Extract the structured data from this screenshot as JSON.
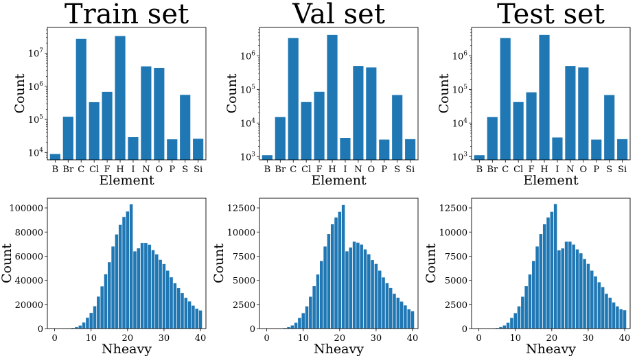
{
  "colors": {
    "bar": "#1f77b4"
  },
  "chart_data": [
    {
      "type": "bar",
      "title": "Train set",
      "xlabel": "Element",
      "ylabel": "Count",
      "yscale": "log",
      "ylim": [
        6000,
        60000000
      ],
      "yticks": [
        10000,
        100000,
        1000000,
        10000000
      ],
      "ytick_labels": [
        {
          "base": "10",
          "exp": "4"
        },
        {
          "base": "10",
          "exp": "5"
        },
        {
          "base": "10",
          "exp": "6"
        },
        {
          "base": "10",
          "exp": "7"
        }
      ],
      "categories": [
        "B",
        "Br",
        "C",
        "Cl",
        "F",
        "H",
        "I",
        "N",
        "O",
        "P",
        "S",
        "Si"
      ],
      "values": [
        9000,
        120000,
        27000000,
        330000,
        680000,
        33000000,
        29000,
        4000000,
        3600000,
        25000,
        550000,
        26000
      ]
    },
    {
      "type": "bar",
      "title": "Val set",
      "xlabel": "Element",
      "ylabel": "Count",
      "yscale": "log",
      "ylim": [
        800,
        7000000
      ],
      "yticks": [
        1000,
        10000,
        100000,
        1000000
      ],
      "ytick_labels": [
        {
          "base": "10",
          "exp": "3"
        },
        {
          "base": "10",
          "exp": "4"
        },
        {
          "base": "10",
          "exp": "5"
        },
        {
          "base": "10",
          "exp": "6"
        }
      ],
      "categories": [
        "B",
        "Br",
        "C",
        "Cl",
        "F",
        "H",
        "I",
        "N",
        "O",
        "P",
        "S",
        "Si"
      ],
      "values": [
        1100,
        15000,
        3400000,
        42000,
        85000,
        4200000,
        3600,
        500000,
        450000,
        3200,
        68000,
        3300
      ]
    },
    {
      "type": "bar",
      "title": "Test set",
      "xlabel": "Element",
      "ylabel": "Count",
      "yscale": "log",
      "ylim": [
        800,
        7000000
      ],
      "yticks": [
        1000,
        10000,
        100000,
        1000000
      ],
      "ytick_labels": [
        {
          "base": "10",
          "exp": "3"
        },
        {
          "base": "10",
          "exp": "4"
        },
        {
          "base": "10",
          "exp": "5"
        },
        {
          "base": "10",
          "exp": "6"
        }
      ],
      "categories": [
        "B",
        "Br",
        "C",
        "Cl",
        "F",
        "H",
        "I",
        "N",
        "O",
        "P",
        "S",
        "Si"
      ],
      "values": [
        1100,
        15000,
        3400000,
        42000,
        82000,
        4200000,
        3700,
        500000,
        450000,
        3200,
        68000,
        3300
      ]
    },
    {
      "type": "bar",
      "xlabel": "Nheavy",
      "ylabel": "Count",
      "xlim": [
        -2,
        41.5
      ],
      "ylim": [
        0,
        108000
      ],
      "xticks": [
        0,
        10,
        20,
        30,
        40
      ],
      "yticks": [
        0,
        20000,
        40000,
        60000,
        80000,
        100000
      ],
      "x": [
        1,
        2,
        3,
        4,
        5,
        6,
        7,
        8,
        9,
        10,
        11,
        12,
        13,
        14,
        15,
        16,
        17,
        18,
        19,
        20,
        21,
        22,
        23,
        24,
        25,
        26,
        27,
        28,
        29,
        30,
        31,
        32,
        33,
        34,
        35,
        36,
        37,
        38,
        39,
        40
      ],
      "values": [
        0,
        0,
        100,
        200,
        500,
        1200,
        2500,
        5000,
        9000,
        13000,
        18500,
        26500,
        35000,
        45000,
        55000,
        68000,
        78000,
        86000,
        92500,
        97000,
        103000,
        64000,
        66500,
        71000,
        71000,
        69500,
        65000,
        61500,
        57000,
        53500,
        48000,
        42500,
        37500,
        33500,
        29500,
        25500,
        22500,
        19000,
        16500,
        15000
      ]
    },
    {
      "type": "bar",
      "xlabel": "Nheavy",
      "ylabel": "Count",
      "xlim": [
        -2,
        41.5
      ],
      "ylim": [
        0,
        13500
      ],
      "xticks": [
        0,
        10,
        20,
        30,
        40
      ],
      "yticks": [
        0,
        2500,
        5000,
        7500,
        10000,
        12500
      ],
      "x": [
        1,
        2,
        3,
        4,
        5,
        6,
        7,
        8,
        9,
        10,
        11,
        12,
        13,
        14,
        15,
        16,
        17,
        18,
        19,
        20,
        21,
        22,
        23,
        24,
        25,
        26,
        27,
        28,
        29,
        30,
        31,
        32,
        33,
        34,
        35,
        36,
        37,
        38,
        39,
        40
      ],
      "values": [
        0,
        0,
        0,
        20,
        60,
        150,
        320,
        600,
        1100,
        1600,
        2300,
        3300,
        4400,
        5600,
        7000,
        8500,
        9800,
        10800,
        11500,
        12100,
        12800,
        8000,
        8400,
        9000,
        8900,
        8700,
        8200,
        7700,
        7100,
        6700,
        6000,
        5300,
        4700,
        4200,
        3600,
        3200,
        2800,
        2400,
        2000,
        1800
      ]
    },
    {
      "type": "bar",
      "xlabel": "Nheavy",
      "ylabel": "Count",
      "xlim": [
        -2,
        41.5
      ],
      "ylim": [
        0,
        13500
      ],
      "xticks": [
        0,
        10,
        20,
        30,
        40
      ],
      "yticks": [
        0,
        2500,
        5000,
        7500,
        10000,
        12500
      ],
      "x": [
        1,
        2,
        3,
        4,
        5,
        6,
        7,
        8,
        9,
        10,
        11,
        12,
        13,
        14,
        15,
        16,
        17,
        18,
        19,
        20,
        21,
        22,
        23,
        24,
        25,
        26,
        27,
        28,
        29,
        30,
        31,
        32,
        33,
        34,
        35,
        36,
        37,
        38,
        39,
        40
      ],
      "values": [
        0,
        0,
        0,
        20,
        60,
        150,
        320,
        600,
        1100,
        1600,
        2300,
        3300,
        4400,
        5600,
        7000,
        8500,
        9800,
        10800,
        11500,
        12100,
        12900,
        8100,
        8300,
        9000,
        9000,
        8700,
        8200,
        7800,
        7200,
        6700,
        6000,
        5400,
        4800,
        4300,
        3600,
        3200,
        2700,
        2300,
        2000,
        1900
      ]
    }
  ]
}
